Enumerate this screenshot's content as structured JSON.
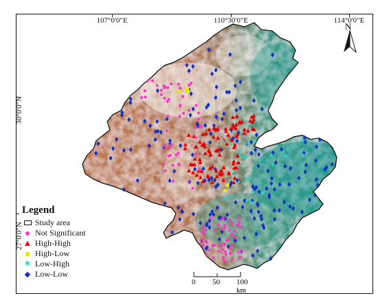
{
  "longitude_ticks": [
    "107°0'0\"E",
    "110°30'0\"E",
    "114°0'0\"E"
  ],
  "latitude_ticks": [
    "30°0'0\"N",
    "27°0'0\"N"
  ],
  "legend": {
    "title": "Legend",
    "items": [
      {
        "label": "Study area",
        "symbol": "outline",
        "color": "#111111"
      },
      {
        "label": "Not Significant",
        "symbol": "dot",
        "color": "#ff33cc"
      },
      {
        "label": "High-High",
        "symbol": "triangle",
        "color": "#e00000"
      },
      {
        "label": "High-Low",
        "symbol": "square",
        "color": "#f5e400"
      },
      {
        "label": "Low-High",
        "symbol": "star",
        "color": "#22d6c8"
      },
      {
        "label": "Low-Low",
        "symbol": "diamond",
        "color": "#1030c8"
      }
    ]
  },
  "north_arrow": {
    "label": "N",
    "icon": "north-arrow-icon"
  },
  "scale_bar": {
    "ticks": [
      "0",
      "50",
      "100 km"
    ]
  },
  "terrain_colors": {
    "lowland": "#1f9a92",
    "upland": "#b9744c",
    "highland": "#f2ece6"
  }
}
